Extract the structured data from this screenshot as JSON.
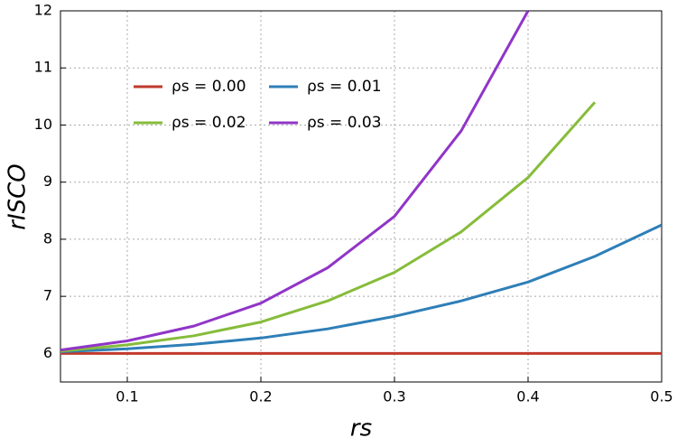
{
  "chart_data": {
    "type": "line",
    "x_label": "rs",
    "y_label": "rISCO",
    "x": [
      0.05,
      0.1,
      0.15,
      0.2,
      0.25,
      0.3,
      0.35,
      0.4,
      0.45,
      0.5
    ],
    "series": [
      {
        "name": "ρs = 0.00",
        "color": "#c0392b",
        "values": [
          6,
          6,
          6,
          6,
          6,
          6,
          6,
          6,
          6,
          6
        ]
      },
      {
        "name": "ρs = 0.01",
        "color": "#2e7fb8",
        "values": [
          6.03,
          6.08,
          6.16,
          6.27,
          6.43,
          6.65,
          6.92,
          7.25,
          7.7,
          8.25
        ]
      },
      {
        "name": "ρs = 0.02",
        "color": "#86bc3a",
        "values": [
          6.04,
          6.15,
          6.31,
          6.55,
          6.92,
          7.42,
          8.13,
          9.08,
          10.4,
          null
        ]
      },
      {
        "name": "ρs = 0.03",
        "color": "#9035c8",
        "values": [
          6.06,
          6.22,
          6.48,
          6.88,
          7.5,
          8.4,
          9.9,
          12.0,
          null,
          null
        ]
      }
    ],
    "xlim": [
      0.05,
      0.5
    ],
    "ylim": [
      5.5,
      12
    ],
    "xticks": [
      0.1,
      0.2,
      0.3,
      0.4,
      0.5
    ],
    "yticks": [
      6,
      7,
      8,
      9,
      10,
      11,
      12
    ],
    "grid": true,
    "legend": "upper left"
  }
}
